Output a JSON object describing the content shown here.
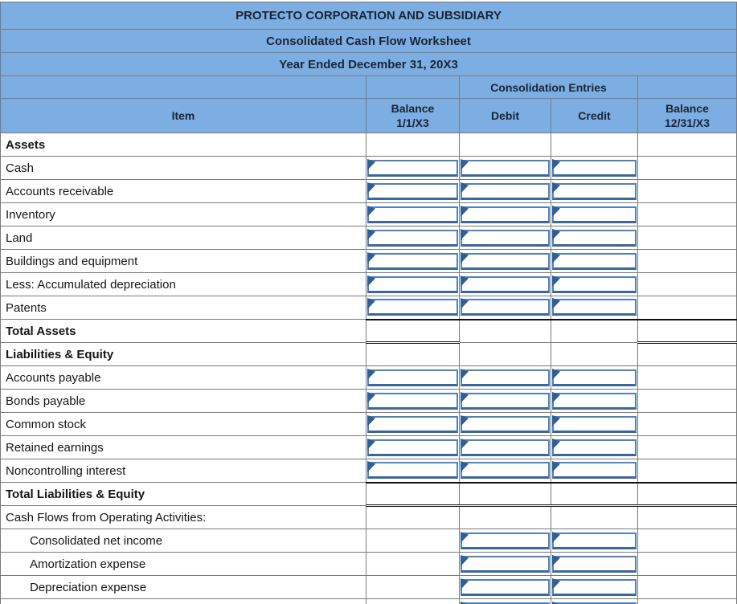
{
  "theme": {
    "header_bg": "#7CAEE3",
    "header_text": "#1B2433",
    "body_text": "#151515",
    "grid_line": "#7A7A7A",
    "outer_border": "#3F3F3F",
    "total_line": "#111111",
    "input_border": "#4F81BD",
    "input_border_bottom": "#3A689B",
    "input_flag": "#2D5F99",
    "input_bg": "#FFFFFF"
  },
  "header": {
    "title": "PROTECTO CORPORATION AND SUBSIDIARY",
    "subtitle": "Consolidated Cash Flow Worksheet",
    "period": "Year Ended December 31, 20X3",
    "entries_label": "Consolidation Entries"
  },
  "columns": {
    "item": "Item",
    "balance_begin": "Balance\n1/1/X3",
    "debit": "Debit",
    "credit": "Credit",
    "balance_end": "Balance\n12/31/X3"
  },
  "rows": [
    {
      "type": "section",
      "label": "Assets",
      "inputs": []
    },
    {
      "type": "item",
      "label": "Cash",
      "inputs": [
        "balance",
        "debit",
        "credit"
      ]
    },
    {
      "type": "item",
      "label": "Accounts receivable",
      "inputs": [
        "balance",
        "debit",
        "credit"
      ]
    },
    {
      "type": "item",
      "label": "Inventory",
      "inputs": [
        "balance",
        "debit",
        "credit"
      ]
    },
    {
      "type": "item",
      "label": "Land",
      "inputs": [
        "balance",
        "debit",
        "credit"
      ]
    },
    {
      "type": "item",
      "label": "Buildings and equipment",
      "inputs": [
        "balance",
        "debit",
        "credit"
      ]
    },
    {
      "type": "item",
      "label": "Less: Accumulated depreciation",
      "inputs": [
        "balance",
        "debit",
        "credit"
      ]
    },
    {
      "type": "item",
      "label": "Patents",
      "inputs": [
        "balance",
        "debit",
        "credit"
      ]
    },
    {
      "type": "total",
      "label": "Total Assets",
      "inputs": [],
      "double": "balances"
    },
    {
      "type": "section",
      "label": "Liabilities & Equity",
      "inputs": []
    },
    {
      "type": "item",
      "label": "Accounts payable",
      "inputs": [
        "balance",
        "debit",
        "credit"
      ]
    },
    {
      "type": "item",
      "label": "Bonds payable",
      "inputs": [
        "balance",
        "debit",
        "credit"
      ]
    },
    {
      "type": "item",
      "label": "Common stock",
      "inputs": [
        "balance",
        "debit",
        "credit"
      ]
    },
    {
      "type": "item",
      "label": "Retained earnings",
      "inputs": [
        "balance",
        "debit",
        "credit"
      ]
    },
    {
      "type": "item",
      "label": "Noncontrolling interest",
      "inputs": [
        "balance",
        "debit",
        "credit"
      ]
    },
    {
      "type": "total",
      "label": "Total Liabilities & Equity",
      "inputs": [],
      "double": "all"
    },
    {
      "type": "label",
      "label": "Cash Flows from Operating Activities:",
      "inputs": []
    },
    {
      "type": "indent",
      "label": "Consolidated net income",
      "inputs": [
        "debit",
        "credit"
      ]
    },
    {
      "type": "indent",
      "label": "Amortization expense",
      "inputs": [
        "debit",
        "credit"
      ]
    },
    {
      "type": "indent",
      "label": "Depreciation expense",
      "inputs": [
        "debit",
        "credit"
      ]
    },
    {
      "type": "partial",
      "label": "",
      "inputs": [
        "debit",
        "credit"
      ]
    }
  ]
}
